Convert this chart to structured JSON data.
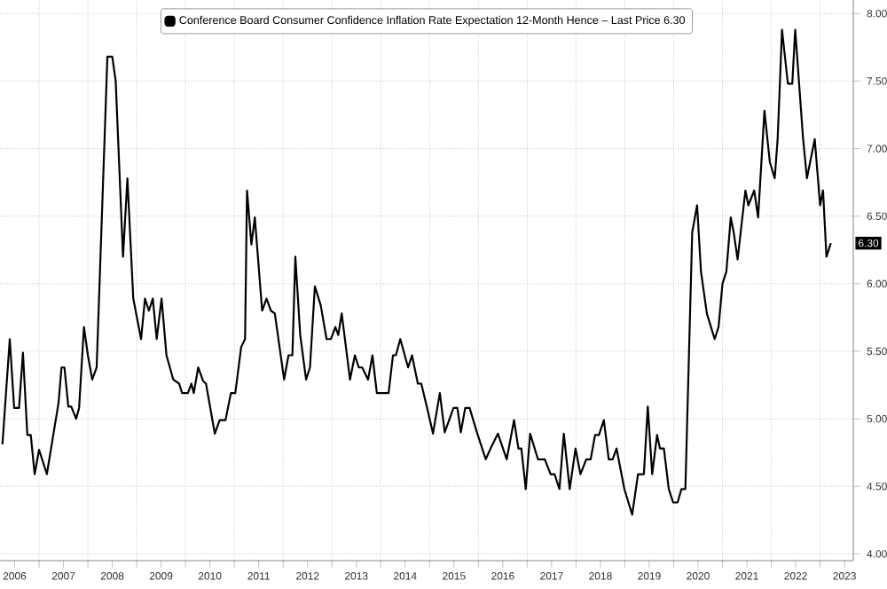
{
  "chart_data": {
    "type": "line",
    "series": [
      {
        "name": "Conference Board Consumer Confidence Inflation Rate Expectation 12-Month Hence – Last Price 6.30",
        "color": "#000000",
        "x": [
          2006.25,
          2006.4,
          2006.49,
          2006.59,
          2006.67,
          2006.76,
          2006.83,
          2006.91,
          2007.0,
          2007.16,
          2007.4,
          2007.46,
          2007.52,
          2007.6,
          2007.66,
          2007.76,
          2007.82,
          2007.92,
          2008.0,
          2008.09,
          2008.18,
          2008.4,
          2008.5,
          2008.57,
          2008.72,
          2008.81,
          2008.93,
          2009.09,
          2009.17,
          2009.25,
          2009.33,
          2009.41,
          2009.51,
          2009.61,
          2009.75,
          2009.87,
          2009.93,
          2010.05,
          2010.12,
          2010.17,
          2010.26,
          2010.36,
          2010.42,
          2010.6,
          2010.7,
          2010.82,
          2010.93,
          2011.02,
          2011.14,
          2011.22,
          2011.26,
          2011.35,
          2011.42,
          2011.57,
          2011.66,
          2011.75,
          2011.83,
          2012.02,
          2012.11,
          2012.19,
          2012.25,
          2012.35,
          2012.47,
          2012.55,
          2012.65,
          2012.77,
          2012.89,
          2012.98,
          2013.07,
          2013.13,
          2013.2,
          2013.37,
          2013.47,
          2013.55,
          2013.62,
          2013.74,
          2013.83,
          2013.92,
          2014.16,
          2014.25,
          2014.31,
          2014.4,
          2014.56,
          2014.64,
          2014.76,
          2014.83,
          2014.95,
          2015.07,
          2015.21,
          2015.31,
          2015.49,
          2015.57,
          2015.64,
          2015.73,
          2015.82,
          2015.97,
          2016.15,
          2016.25,
          2016.4,
          2016.58,
          2016.73,
          2016.82,
          2016.88,
          2016.97,
          2017.06,
          2017.22,
          2017.36,
          2017.48,
          2017.56,
          2017.66,
          2017.75,
          2017.87,
          2017.99,
          2018.09,
          2018.21,
          2018.3,
          2018.39,
          2018.47,
          2018.57,
          2018.67,
          2018.75,
          2018.83,
          2018.99,
          2019.15,
          2019.27,
          2019.39,
          2019.47,
          2019.56,
          2019.66,
          2019.72,
          2019.8,
          2019.9,
          2019.99,
          2020.08,
          2020.16,
          2020.24,
          2020.38,
          2020.48,
          2020.56,
          2020.68,
          2020.84,
          2020.92,
          2021.0,
          2021.08,
          2021.17,
          2021.23,
          2021.31,
          2021.47,
          2021.53,
          2021.65,
          2021.73,
          2021.86,
          2021.97,
          2022.07,
          2022.13,
          2022.22,
          2022.34,
          2022.43,
          2022.49,
          2022.65,
          2022.73,
          2022.89,
          2023.0,
          2023.06,
          2023.13,
          2023.22
        ],
        "values": [
          4.81,
          5.59,
          5.08,
          5.08,
          5.49,
          4.88,
          4.88,
          4.59,
          4.77,
          4.59,
          5.12,
          5.38,
          5.38,
          5.09,
          5.09,
          5.0,
          5.08,
          5.68,
          5.47,
          5.29,
          5.38,
          7.68,
          7.68,
          7.5,
          6.2,
          6.78,
          5.89,
          5.59,
          5.89,
          5.8,
          5.89,
          5.59,
          5.89,
          5.47,
          5.29,
          5.26,
          5.19,
          5.19,
          5.26,
          5.19,
          5.38,
          5.28,
          5.26,
          4.89,
          4.99,
          4.99,
          5.19,
          5.19,
          5.53,
          5.59,
          6.69,
          6.29,
          6.49,
          5.8,
          5.89,
          5.8,
          5.78,
          5.29,
          5.47,
          5.47,
          6.2,
          5.62,
          5.29,
          5.38,
          5.98,
          5.84,
          5.59,
          5.59,
          5.68,
          5.62,
          5.78,
          5.29,
          5.47,
          5.38,
          5.38,
          5.29,
          5.47,
          5.19,
          5.19,
          5.47,
          5.47,
          5.59,
          5.38,
          5.47,
          5.26,
          5.26,
          5.08,
          4.89,
          5.19,
          4.9,
          5.08,
          5.08,
          4.9,
          5.08,
          5.08,
          4.9,
          4.7,
          4.78,
          4.89,
          4.7,
          4.99,
          4.78,
          4.78,
          4.48,
          4.89,
          4.7,
          4.7,
          4.59,
          4.59,
          4.48,
          4.89,
          4.48,
          4.78,
          4.59,
          4.7,
          4.7,
          4.88,
          4.88,
          4.99,
          4.7,
          4.7,
          4.78,
          4.48,
          4.29,
          4.59,
          4.59,
          5.09,
          4.59,
          4.88,
          4.78,
          4.78,
          4.48,
          4.38,
          4.38,
          4.48,
          4.48,
          6.38,
          6.58,
          6.09,
          5.78,
          5.59,
          5.68,
          6.0,
          6.09,
          6.49,
          6.38,
          6.18,
          6.69,
          6.58,
          6.69,
          6.49,
          7.28,
          6.9,
          6.78,
          7.07,
          7.88,
          7.48,
          7.48,
          7.88,
          7.08,
          6.78,
          7.07,
          6.58,
          6.69,
          6.2,
          6.3
        ]
      }
    ],
    "xlim": [
      2006.2,
      2023.68
    ],
    "xticks": [
      {
        "value": 2007,
        "label": null
      },
      {
        "value": 2008,
        "label": null
      },
      {
        "value": 2009,
        "label": null
      },
      {
        "value": 2010,
        "label": null
      },
      {
        "value": 2011,
        "label": null
      },
      {
        "value": 2012,
        "label": null
      },
      {
        "value": 2013,
        "label": null
      },
      {
        "value": 2014,
        "label": null
      },
      {
        "value": 2015,
        "label": null
      },
      {
        "value": 2016,
        "label": null
      },
      {
        "value": 2017,
        "label": null
      },
      {
        "value": 2018,
        "label": null
      },
      {
        "value": 2019,
        "label": null
      },
      {
        "value": 2020,
        "label": null
      },
      {
        "value": 2021,
        "label": null
      },
      {
        "value": 2022,
        "label": null
      },
      {
        "value": 2023,
        "label": null
      },
      {
        "value": 2006.5,
        "label": "2006"
      },
      {
        "value": 2007.5,
        "label": "2007"
      },
      {
        "value": 2008.5,
        "label": "2008"
      },
      {
        "value": 2009.5,
        "label": "2009"
      },
      {
        "value": 2010.5,
        "label": "2010"
      },
      {
        "value": 2011.5,
        "label": "2011"
      },
      {
        "value": 2012.5,
        "label": "2012"
      },
      {
        "value": 2013.5,
        "label": "2013"
      },
      {
        "value": 2014.5,
        "label": "2014"
      },
      {
        "value": 2015.5,
        "label": "2015"
      },
      {
        "value": 2016.5,
        "label": "2016"
      },
      {
        "value": 2017.5,
        "label": "2017"
      },
      {
        "value": 2018.5,
        "label": "2018"
      },
      {
        "value": 2019.5,
        "label": "2019"
      },
      {
        "value": 2020.5,
        "label": "2020"
      },
      {
        "value": 2021.5,
        "label": "2021"
      },
      {
        "value": 2022.5,
        "label": "2022"
      },
      {
        "value": 2023.5,
        "label": "2023"
      }
    ],
    "ylim": [
      3.95,
      8.1
    ],
    "yticks": [
      {
        "value": 4,
        "label": "4.00"
      },
      {
        "value": 4.5,
        "label": "4.50"
      },
      {
        "value": 5,
        "label": "5.00"
      },
      {
        "value": 5.5,
        "label": "5.50"
      },
      {
        "value": 6,
        "label": "6.00"
      },
      {
        "value": 6.5,
        "label": "6.50"
      },
      {
        "value": 7,
        "label": "7.00"
      },
      {
        "value": 7.5,
        "label": "7.50"
      },
      {
        "value": 8,
        "label": "8.00"
      }
    ],
    "annotations": [
      {
        "text": "6.30",
        "y": 6.3
      }
    ],
    "grid": true,
    "legend": "top",
    "line_style": "solid",
    "marker": "none"
  }
}
